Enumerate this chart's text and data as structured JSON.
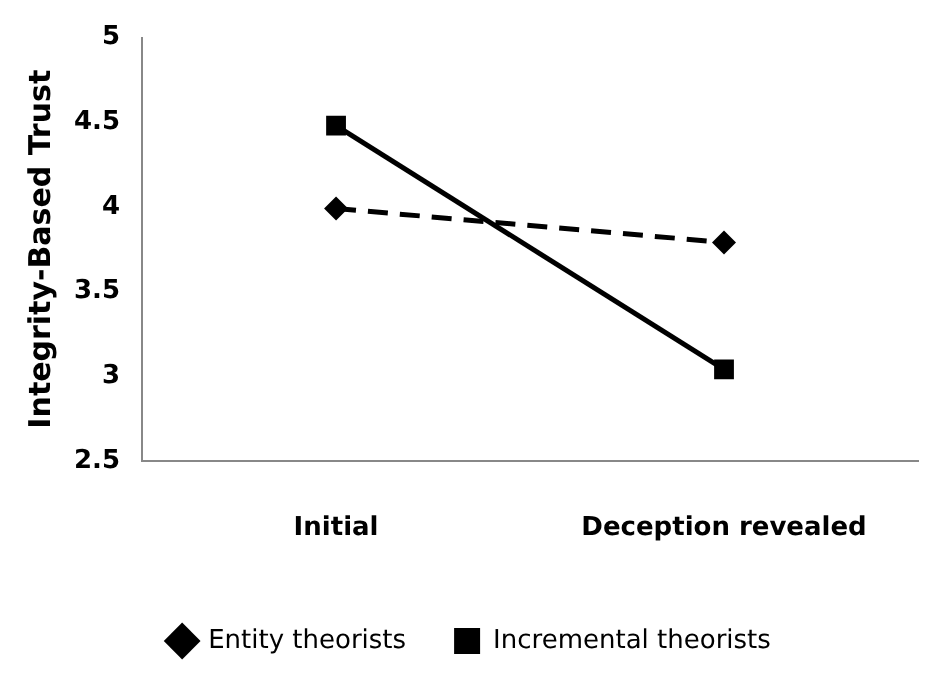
{
  "chart_data": {
    "type": "line",
    "ylabel": "Integrity-Based Trust",
    "categories": [
      "Initial",
      "Deception revealed"
    ],
    "series": [
      {
        "name": "Entity theorists",
        "color": "#000000",
        "values": [
          3.99,
          3.79
        ],
        "marker": "diamond",
        "line_style": "dashed"
      },
      {
        "name": "Incremental theorists",
        "color": "#000000",
        "values": [
          4.48,
          3.04
        ],
        "marker": "square",
        "line_style": "solid"
      }
    ],
    "ylim": [
      2.5,
      5
    ],
    "yticks": [
      2.5,
      3,
      3.5,
      4,
      4.5,
      5
    ],
    "grid": false,
    "legend": "bottom"
  }
}
